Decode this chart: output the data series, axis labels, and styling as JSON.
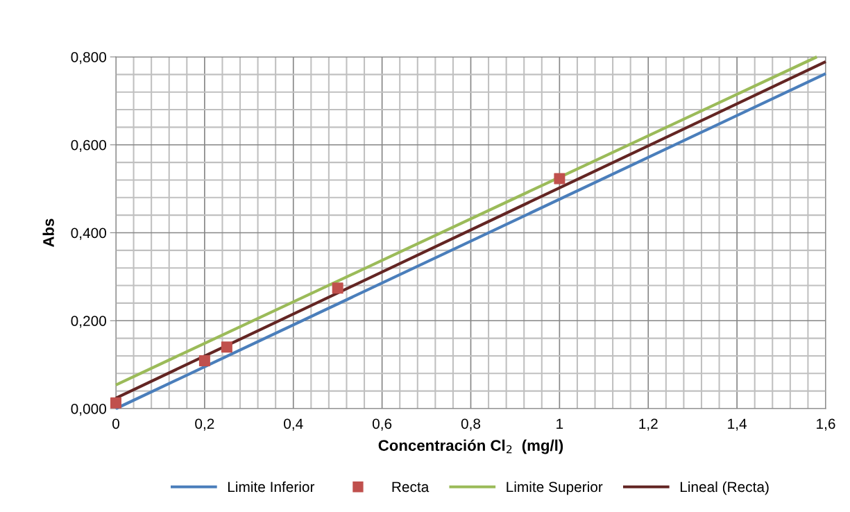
{
  "chart_data": {
    "type": "line",
    "xlabel": "Concentración Cl$_{2}$  (mg/l)",
    "ylabel": "Abs",
    "series": [
      {
        "name": "Limite Inferior",
        "color": "#4a7ebb",
        "x": [
          0,
          1.6
        ],
        "values": [
          0.0,
          0.762
        ],
        "marker": "none"
      },
      {
        "name": "Recta",
        "type": "scatter",
        "color": "#c0504d",
        "x": [
          0,
          0.2,
          0.25,
          0.5,
          1.0
        ],
        "values": [
          0.013,
          0.109,
          0.14,
          0.274,
          0.523
        ],
        "marker": "square"
      },
      {
        "name": "Limite Superior",
        "color": "#9bbb59",
        "x": [
          0,
          1.58
        ],
        "values": [
          0.054,
          0.8
        ],
        "marker": "none"
      },
      {
        "name": "Lineal (Recta)",
        "color": "#632523",
        "x": [
          0,
          1.6
        ],
        "values": [
          0.024,
          0.789
        ],
        "marker": "none"
      }
    ],
    "xlim": [
      0,
      1.6
    ],
    "ylim": [
      0,
      0.8
    ],
    "xticks": [
      0,
      {
        "value": 0.2,
        "label": "0,2"
      },
      {
        "value": 0.4,
        "label": "0,4"
      },
      {
        "value": 0.6,
        "label": "0,6"
      },
      {
        "value": 0.8,
        "label": "0,8"
      },
      1,
      {
        "value": 1.2,
        "label": "1,2"
      },
      {
        "value": 1.4,
        "label": "1,4"
      },
      {
        "value": 1.6,
        "label": "1,6"
      }
    ],
    "yticks": [
      {
        "value": 0,
        "label": "0,000"
      },
      {
        "value": 0.2,
        "label": "0,200"
      },
      {
        "value": 0.4,
        "label": "0,400"
      },
      {
        "value": 0.6,
        "label": "0,600"
      },
      {
        "value": 0.8,
        "label": "0,800"
      }
    ],
    "grid": true,
    "legend": "bottom",
    "line_style": "solid"
  }
}
